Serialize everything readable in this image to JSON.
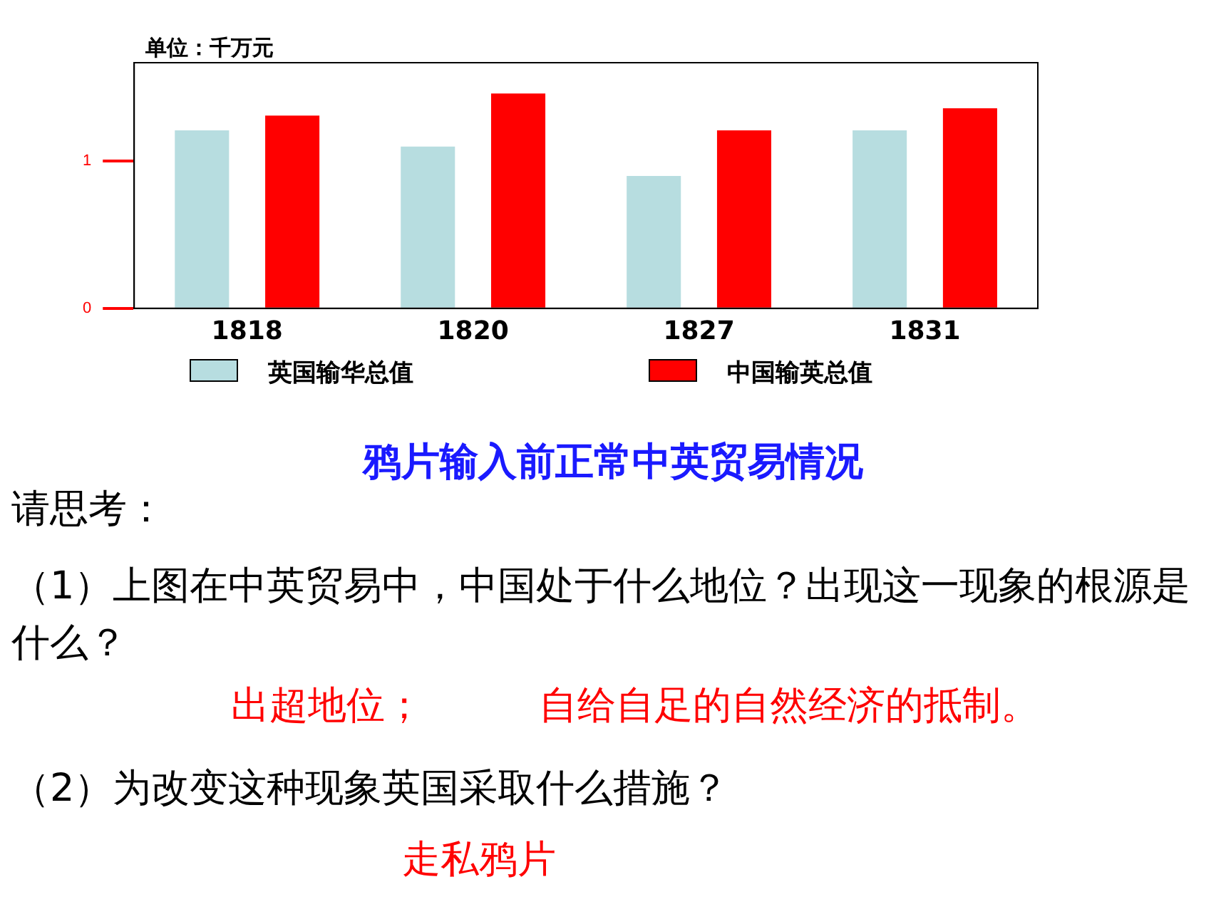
{
  "chart_data": {
    "type": "bar",
    "title": "鸦片输入前正常中英贸易情况",
    "ylabel": "单位：千万元",
    "categories": [
      "1818",
      "1820",
      "1827",
      "1831"
    ],
    "series": [
      {
        "name": "英国输华总值",
        "color": "#b7dde0",
        "values": [
          1.21,
          1.1,
          0.9,
          1.21
        ]
      },
      {
        "name": "中国输英总值",
        "color": "#ff0000",
        "values": [
          1.31,
          1.46,
          1.21,
          1.36
        ]
      }
    ],
    "ylim": [
      0,
      1.67
    ],
    "yticks": [
      0,
      1
    ],
    "grid": false,
    "legend": "bottom",
    "annotations": [
      "请思考：",
      "（1）上图在中英贸易中，中国处于什么地位？出现这一现象的根源是什么？",
      "出超地位；",
      "自给自足的自然经济的抵制。",
      "（2）为改变这种现象英国采取什么措施？",
      "走私鸦片"
    ]
  }
}
